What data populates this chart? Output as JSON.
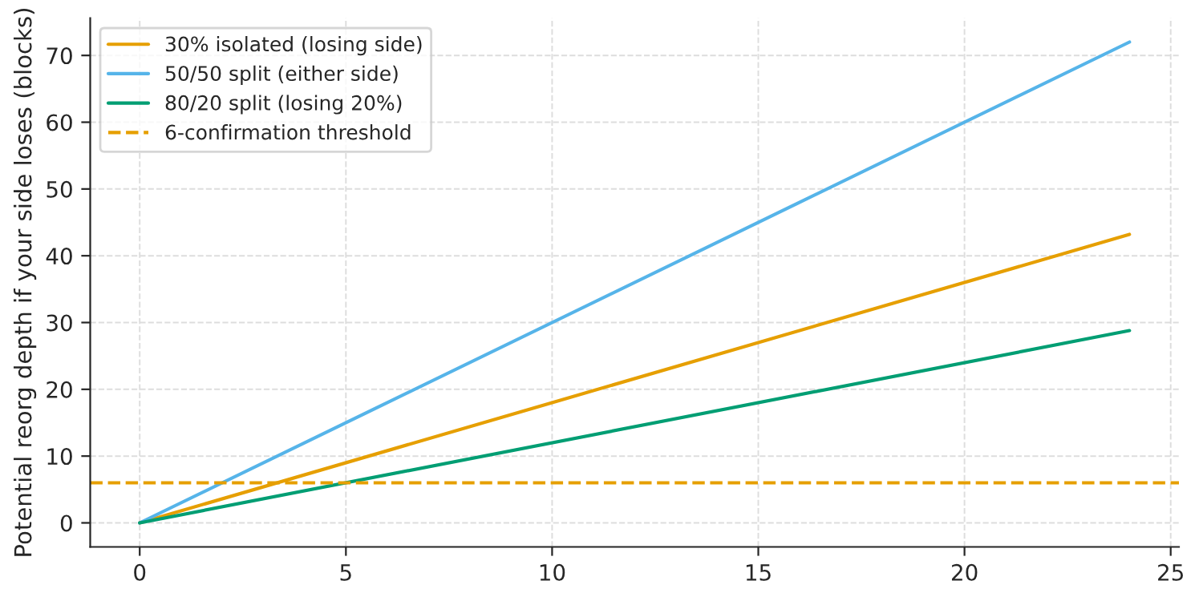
{
  "chart_data": {
    "type": "line",
    "ylabel": "Potential reorg depth if your side loses (blocks)",
    "x": [
      0,
      24
    ],
    "series": [
      {
        "name": "30% isolated (losing side)",
        "color": "#e69f00",
        "values": [
          0,
          43.2
        ]
      },
      {
        "name": "50/50 split (either side)",
        "color": "#56b4e9",
        "values": [
          0,
          72
        ]
      },
      {
        "name": "80/20 split (losing 20%)",
        "color": "#009e73",
        "values": [
          0,
          28.8
        ]
      }
    ],
    "ref_lines": [
      {
        "axis": "y",
        "value": 6,
        "label": "6-confirmation threshold",
        "color": "#e69f00",
        "line_style": "dashed"
      }
    ],
    "xlim": [
      -1.2,
      25.2
    ],
    "xticks": [
      0,
      5,
      10,
      15,
      20,
      25
    ],
    "ylim": [
      -3.6,
      75.6
    ],
    "yticks": [
      0,
      10,
      20,
      30,
      40,
      50,
      60,
      70
    ],
    "grid": true,
    "legend": "top left",
    "line_style": "solid",
    "marker": "none"
  }
}
